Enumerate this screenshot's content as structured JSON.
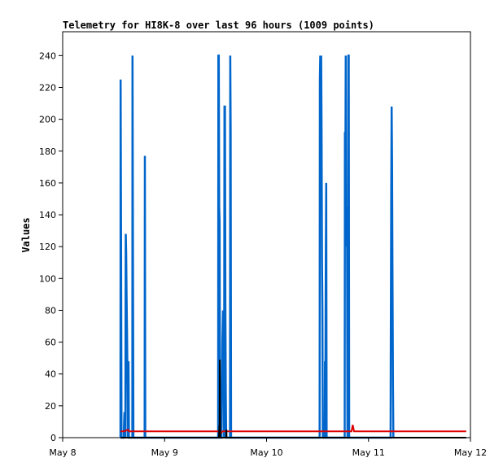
{
  "chart_data": {
    "type": "line",
    "title": "Telemetry for HI8K-8 over last 96 hours (1009 points)",
    "xlabel": "",
    "ylabel": "Values",
    "x_ticks": [
      "May 8",
      "May 9",
      "May 10",
      "May 11",
      "May 12"
    ],
    "x_unit": "hours since May 8 00:00",
    "xlim": [
      0,
      96
    ],
    "ylim": [
      0,
      255
    ],
    "y_ticks": [
      0,
      20,
      40,
      60,
      80,
      100,
      120,
      140,
      160,
      180,
      200,
      220,
      240
    ],
    "grid": false,
    "colors": {
      "blue": "#0066cc",
      "red": "#dd0000",
      "black": "#000000"
    },
    "series": [
      {
        "color": "#0066cc",
        "points": [
          [
            13.6,
            0
          ],
          [
            13.65,
            225
          ],
          [
            13.75,
            112
          ],
          [
            13.85,
            0
          ],
          [
            14.4,
            0
          ],
          [
            14.45,
            8
          ],
          [
            14.55,
            16
          ],
          [
            14.65,
            12
          ],
          [
            14.75,
            0
          ],
          [
            14.85,
            128
          ],
          [
            14.95,
            116
          ],
          [
            15.05,
            90
          ],
          [
            15.15,
            65
          ],
          [
            15.25,
            40
          ],
          [
            15.35,
            0
          ],
          [
            15.5,
            48
          ],
          [
            15.6,
            0
          ],
          [
            16.4,
            0
          ],
          [
            16.45,
            240
          ],
          [
            16.55,
            104
          ],
          [
            16.65,
            0
          ],
          [
            19.3,
            0
          ],
          [
            19.35,
            177
          ],
          [
            19.45,
            0
          ],
          [
            36.6,
            0
          ],
          [
            36.65,
            240
          ],
          [
            36.75,
            240
          ],
          [
            36.85,
            145
          ],
          [
            36.95,
            136
          ],
          [
            37.05,
            0
          ],
          [
            37.4,
            0
          ],
          [
            37.5,
            30
          ],
          [
            37.6,
            60
          ],
          [
            37.75,
            80
          ],
          [
            37.9,
            70
          ],
          [
            38.0,
            0
          ],
          [
            38.1,
            208
          ],
          [
            38.2,
            208
          ],
          [
            38.3,
            85
          ],
          [
            38.4,
            28
          ],
          [
            38.5,
            0
          ],
          [
            39.4,
            0
          ],
          [
            39.45,
            240
          ],
          [
            39.55,
            192
          ],
          [
            39.65,
            0
          ],
          [
            60.5,
            0
          ],
          [
            60.55,
            225
          ],
          [
            60.65,
            240
          ],
          [
            60.75,
            208
          ],
          [
            60.85,
            240
          ],
          [
            60.95,
            192
          ],
          [
            61.05,
            112
          ],
          [
            61.15,
            80
          ],
          [
            61.25,
            0
          ],
          [
            61.7,
            0
          ],
          [
            61.75,
            48
          ],
          [
            61.85,
            32
          ],
          [
            61.95,
            112
          ],
          [
            62.05,
            160
          ],
          [
            62.15,
            0
          ],
          [
            66.4,
            0
          ],
          [
            66.45,
            192
          ],
          [
            66.55,
            160
          ],
          [
            66.65,
            240
          ],
          [
            66.75,
            120
          ],
          [
            66.85,
            145
          ],
          [
            66.95,
            128
          ],
          [
            67.05,
            0
          ],
          [
            67.2,
            0
          ],
          [
            67.25,
            240
          ],
          [
            67.35,
            240
          ],
          [
            67.45,
            0
          ],
          [
            77.2,
            0
          ],
          [
            77.25,
            52
          ],
          [
            77.35,
            156
          ],
          [
            77.45,
            208
          ],
          [
            77.55,
            172
          ],
          [
            77.65,
            104
          ],
          [
            77.75,
            34
          ],
          [
            77.85,
            0
          ]
        ]
      },
      {
        "color": "#dd0000",
        "points": [
          [
            13.6,
            4
          ],
          [
            14.0,
            4
          ],
          [
            14.5,
            4
          ],
          [
            15.4,
            5
          ],
          [
            15.6,
            4
          ],
          [
            16.2,
            4
          ],
          [
            20.0,
            4
          ],
          [
            36.5,
            4
          ],
          [
            36.8,
            4
          ],
          [
            37.0,
            3
          ],
          [
            37.3,
            3
          ],
          [
            37.6,
            4
          ],
          [
            38.3,
            4
          ],
          [
            40.0,
            4
          ],
          [
            55.0,
            4
          ],
          [
            59.5,
            4
          ],
          [
            60.5,
            4
          ],
          [
            65.0,
            4
          ],
          [
            68.0,
            4
          ],
          [
            68.3,
            8
          ],
          [
            68.6,
            4
          ],
          [
            75.0,
            4
          ],
          [
            85.0,
            4
          ],
          [
            95.0,
            4
          ]
        ]
      },
      {
        "color": "#000000",
        "points": [
          [
            13.6,
            0
          ],
          [
            36.7,
            0
          ],
          [
            36.8,
            1
          ],
          [
            36.9,
            8
          ],
          [
            36.95,
            0
          ],
          [
            37.0,
            49
          ],
          [
            37.05,
            20
          ],
          [
            37.1,
            0
          ],
          [
            38.5,
            0
          ],
          [
            38.55,
            5
          ],
          [
            38.6,
            0
          ],
          [
            95.0,
            0
          ]
        ]
      }
    ]
  }
}
